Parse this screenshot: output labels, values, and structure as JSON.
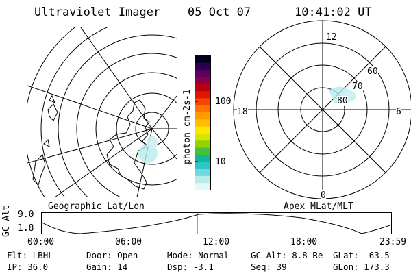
{
  "header": {
    "instrument": "Ultraviolet Imager",
    "date": "05 Oct 07",
    "time": "10:41:02 UT"
  },
  "colorbar": {
    "label": "photon cm-2s-1",
    "ticks": [
      "100",
      "10"
    ],
    "colors": [
      "#e6f7f7",
      "#b7ebec",
      "#74d7e0",
      "#2dc5c7",
      "#14b59a",
      "#43c23a",
      "#91d400",
      "#d7e300",
      "#ffe600",
      "#ffbf00",
      "#ff9a00",
      "#ff7400",
      "#f44500",
      "#dc1800",
      "#b8000e",
      "#8b0043",
      "#5b0060",
      "#2c0050",
      "#000020"
    ]
  },
  "left_panel": {
    "caption": "Geographic Lat/Lon"
  },
  "right_panel": {
    "caption": "Apex MLat/MLT",
    "mlt_labels": {
      "top": "12",
      "bottom": "0",
      "left": "18",
      "right": "6"
    },
    "lat_labels": [
      "60",
      "70",
      "80"
    ]
  },
  "altitude_plot": {
    "ylabel": "GC Alt",
    "yticks": [
      "9.0",
      "1.8"
    ],
    "xticks": [
      "00:00",
      "06:00",
      "12:00",
      "18:00",
      "23:59"
    ],
    "current_time_marker": "10:41"
  },
  "metadata": {
    "row1": [
      {
        "label": "Flt:",
        "value": "LBHL"
      },
      {
        "label": "Door:",
        "value": "Open"
      },
      {
        "label": "Mode:",
        "value": "Normal"
      },
      {
        "label": "GC Alt:",
        "value": "8.8 Re"
      },
      {
        "label": "GLat:",
        "value": "-63.5"
      }
    ],
    "row2": [
      {
        "label": "IP:",
        "value": "36.0"
      },
      {
        "label": "Gain:",
        "value": "14"
      },
      {
        "label": "Dsp:",
        "value": "-3.1"
      },
      {
        "label": "Seq:",
        "value": "39"
      },
      {
        "label": "GLon:",
        "value": "173.3"
      }
    ]
  }
}
